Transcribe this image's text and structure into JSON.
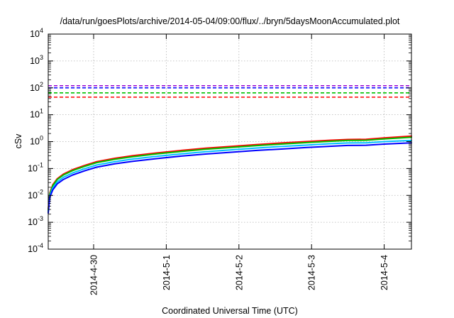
{
  "chart_data": {
    "type": "line",
    "title": "/data/run/goesPlots/archive/2014-05-04/09:00/flux/../bryn/5daysMoonAccumulated.plot",
    "xlabel": "Coordinated Universal Time (UTC)",
    "ylabel": "cSv",
    "x_scale": "time",
    "y_scale": "log",
    "xlim": [
      "2014-04-29T09:00",
      "2014-05-04T09:00"
    ],
    "ylim": [
      0.0001,
      10000
    ],
    "grid": true,
    "legend": "none",
    "x_ticks": [
      {
        "value": "2014-04-30T00:00",
        "label": "2014-4-30"
      },
      {
        "value": "2014-05-01T00:00",
        "label": "2014-5-1"
      },
      {
        "value": "2014-05-02T00:00",
        "label": "2014-5-2"
      },
      {
        "value": "2014-05-03T00:00",
        "label": "2014-5-3"
      },
      {
        "value": "2014-05-04T00:00",
        "label": "2014-5-4"
      }
    ],
    "y_ticks": [
      {
        "value": 0.0001,
        "base": "10",
        "exp": "-4"
      },
      {
        "value": 0.001,
        "base": "10",
        "exp": "-3"
      },
      {
        "value": 0.01,
        "base": "10",
        "exp": "-2"
      },
      {
        "value": 0.1,
        "base": "10",
        "exp": "-1"
      },
      {
        "value": 1,
        "base": "10",
        "exp": "0"
      },
      {
        "value": 10,
        "base": "10",
        "exp": "1"
      },
      {
        "value": 100,
        "base": "10",
        "exp": "2"
      },
      {
        "value": 1000,
        "base": "10",
        "exp": "3"
      },
      {
        "value": 10000,
        "base": "10",
        "exp": "4"
      }
    ],
    "reference_lines": [
      {
        "color": "#9400d3",
        "y": 120
      },
      {
        "color": "#0000ff",
        "y": 100
      },
      {
        "color": "#00c000",
        "y": 65
      },
      {
        "color": "#ff0000",
        "y": 45
      }
    ],
    "series": [
      {
        "color": "#ff0000",
        "points": [
          [
            "2014-04-29T09:00",
            0.003
          ],
          [
            "2014-04-29T09:30",
            0.012
          ],
          [
            "2014-04-29T10:30",
            0.025
          ],
          [
            "2014-04-29T12:00",
            0.042
          ],
          [
            "2014-04-29T14:00",
            0.062
          ],
          [
            "2014-04-29T17:00",
            0.09
          ],
          [
            "2014-04-29T21:00",
            0.13
          ],
          [
            "2014-04-30T01:00",
            0.18
          ],
          [
            "2014-04-30T07:00",
            0.24
          ],
          [
            "2014-04-30T13:00",
            0.3
          ],
          [
            "2014-04-30T21:00",
            0.38
          ],
          [
            "2014-05-01T05:00",
            0.47
          ],
          [
            "2014-05-01T13:00",
            0.57
          ],
          [
            "2014-05-01T21:00",
            0.66
          ],
          [
            "2014-05-02T06:00",
            0.78
          ],
          [
            "2014-05-02T14:00",
            0.89
          ],
          [
            "2014-05-02T22:00",
            1.0
          ],
          [
            "2014-05-03T06:00",
            1.12
          ],
          [
            "2014-05-03T12:00",
            1.2
          ],
          [
            "2014-05-03T18:00",
            1.22
          ],
          [
            "2014-05-04T00:00",
            1.38
          ],
          [
            "2014-05-04T09:00",
            1.6
          ]
        ]
      },
      {
        "color": "#00c000",
        "points": [
          [
            "2014-04-29T09:00",
            0.0028
          ],
          [
            "2014-04-29T09:30",
            0.011
          ],
          [
            "2014-04-29T10:30",
            0.023
          ],
          [
            "2014-04-29T12:00",
            0.039
          ],
          [
            "2014-04-29T14:00",
            0.057
          ],
          [
            "2014-04-29T17:00",
            0.083
          ],
          [
            "2014-04-29T21:00",
            0.12
          ],
          [
            "2014-04-30T01:00",
            0.165
          ],
          [
            "2014-04-30T07:00",
            0.22
          ],
          [
            "2014-04-30T13:00",
            0.275
          ],
          [
            "2014-04-30T21:00",
            0.35
          ],
          [
            "2014-05-01T05:00",
            0.43
          ],
          [
            "2014-05-01T13:00",
            0.52
          ],
          [
            "2014-05-01T21:00",
            0.6
          ],
          [
            "2014-05-02T06:00",
            0.71
          ],
          [
            "2014-05-02T14:00",
            0.81
          ],
          [
            "2014-05-02T22:00",
            0.91
          ],
          [
            "2014-05-03T06:00",
            1.02
          ],
          [
            "2014-05-03T12:00",
            1.1
          ],
          [
            "2014-05-03T18:00",
            1.12
          ],
          [
            "2014-05-04T00:00",
            1.26
          ],
          [
            "2014-05-04T09:00",
            1.45
          ]
        ]
      },
      {
        "color": "#00bfff",
        "points": [
          [
            "2014-04-29T09:00",
            0.0025
          ],
          [
            "2014-04-29T09:30",
            0.0095
          ],
          [
            "2014-04-29T10:30",
            0.019
          ],
          [
            "2014-04-29T12:00",
            0.032
          ],
          [
            "2014-04-29T14:00",
            0.047
          ],
          [
            "2014-04-29T17:00",
            0.068
          ],
          [
            "2014-04-29T21:00",
            0.098
          ],
          [
            "2014-04-30T01:00",
            0.135
          ],
          [
            "2014-04-30T07:00",
            0.18
          ],
          [
            "2014-04-30T13:00",
            0.225
          ],
          [
            "2014-04-30T21:00",
            0.285
          ],
          [
            "2014-05-01T05:00",
            0.35
          ],
          [
            "2014-05-01T13:00",
            0.42
          ],
          [
            "2014-05-01T21:00",
            0.49
          ],
          [
            "2014-05-02T06:00",
            0.58
          ],
          [
            "2014-05-02T14:00",
            0.66
          ],
          [
            "2014-05-02T22:00",
            0.74
          ],
          [
            "2014-05-03T06:00",
            0.83
          ],
          [
            "2014-05-03T12:00",
            0.89
          ],
          [
            "2014-05-03T18:00",
            0.9
          ],
          [
            "2014-05-04T00:00",
            1.0
          ],
          [
            "2014-05-04T09:00",
            1.1
          ]
        ]
      },
      {
        "color": "#0000ff",
        "points": [
          [
            "2014-04-29T09:00",
            0.0022
          ],
          [
            "2014-04-29T09:30",
            0.0085
          ],
          [
            "2014-04-29T10:30",
            0.016
          ],
          [
            "2014-04-29T12:00",
            0.027
          ],
          [
            "2014-04-29T14:00",
            0.039
          ],
          [
            "2014-04-29T17:00",
            0.057
          ],
          [
            "2014-04-29T21:00",
            0.082
          ],
          [
            "2014-04-30T01:00",
            0.112
          ],
          [
            "2014-04-30T07:00",
            0.15
          ],
          [
            "2014-04-30T13:00",
            0.185
          ],
          [
            "2014-04-30T21:00",
            0.235
          ],
          [
            "2014-05-01T05:00",
            0.29
          ],
          [
            "2014-05-01T13:00",
            0.345
          ],
          [
            "2014-05-01T21:00",
            0.4
          ],
          [
            "2014-05-02T06:00",
            0.47
          ],
          [
            "2014-05-02T14:00",
            0.53
          ],
          [
            "2014-05-02T22:00",
            0.6
          ],
          [
            "2014-05-03T06:00",
            0.67
          ],
          [
            "2014-05-03T12:00",
            0.72
          ],
          [
            "2014-05-03T18:00",
            0.73
          ],
          [
            "2014-05-04T00:00",
            0.81
          ],
          [
            "2014-05-04T09:00",
            0.9
          ]
        ]
      }
    ]
  }
}
